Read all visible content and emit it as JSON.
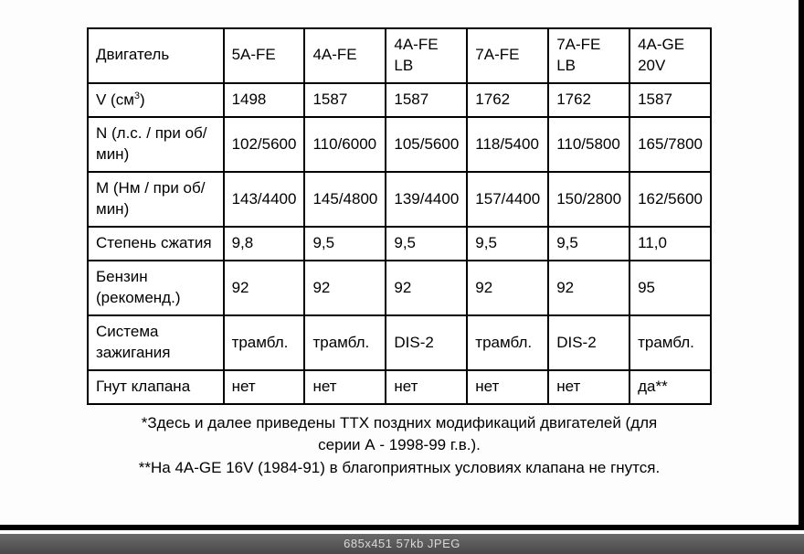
{
  "table": {
    "row_headers_html": [
      "Двигатель",
      "V (см<span class='sup'>3</span>)",
      "N (л.с. / при об/мин)",
      "M (Нм / при об/мин)",
      "Степень сжатия",
      "Бензин (рекоменд.)",
      "Система зажигания",
      "Гнут клапана"
    ],
    "columns": [
      "5A-FE",
      "4A-FE",
      "4A-FE LB",
      "7A-FE",
      "7A-FE LB",
      "4A-GE 20V"
    ],
    "rows": [
      [
        "1498",
        "1587",
        "1587",
        "1762",
        "1762",
        "1587"
      ],
      [
        "102/5600",
        "110/6000",
        "105/5600",
        "118/5400",
        "110/5800",
        "165/7800"
      ],
      [
        "143/4400",
        "145/4800",
        "139/4400",
        "157/4400",
        "150/2800",
        "162/5600"
      ],
      [
        "9,8",
        "9,5",
        "9,5",
        "9,5",
        "9,5",
        "11,0"
      ],
      [
        "92",
        "92",
        "92",
        "92",
        "92",
        "95"
      ],
      [
        "трамбл.",
        "трамбл.",
        "DIS-2",
        "трамбл.",
        "DIS-2",
        "трамбл."
      ],
      [
        "нет",
        "нет",
        "нет",
        "нет",
        "нет",
        "да**"
      ]
    ],
    "cell_fontsize": 17,
    "border_color": "#000000",
    "background_color": "#ffffff"
  },
  "notes": {
    "line1": "*Здесь и далее приведены ТТХ поздних модификаций двигателей (для",
    "line2": "серии А - 1998-99 г.в.).",
    "line3": "**На 4A-GE 16V (1984-91) в благоприятных условиях клапана не гнутся.",
    "fontsize": 17
  },
  "footer": {
    "text": "685x451  57kb  JPEG",
    "background_color": "#555555",
    "text_color": "#d8d8d8"
  }
}
